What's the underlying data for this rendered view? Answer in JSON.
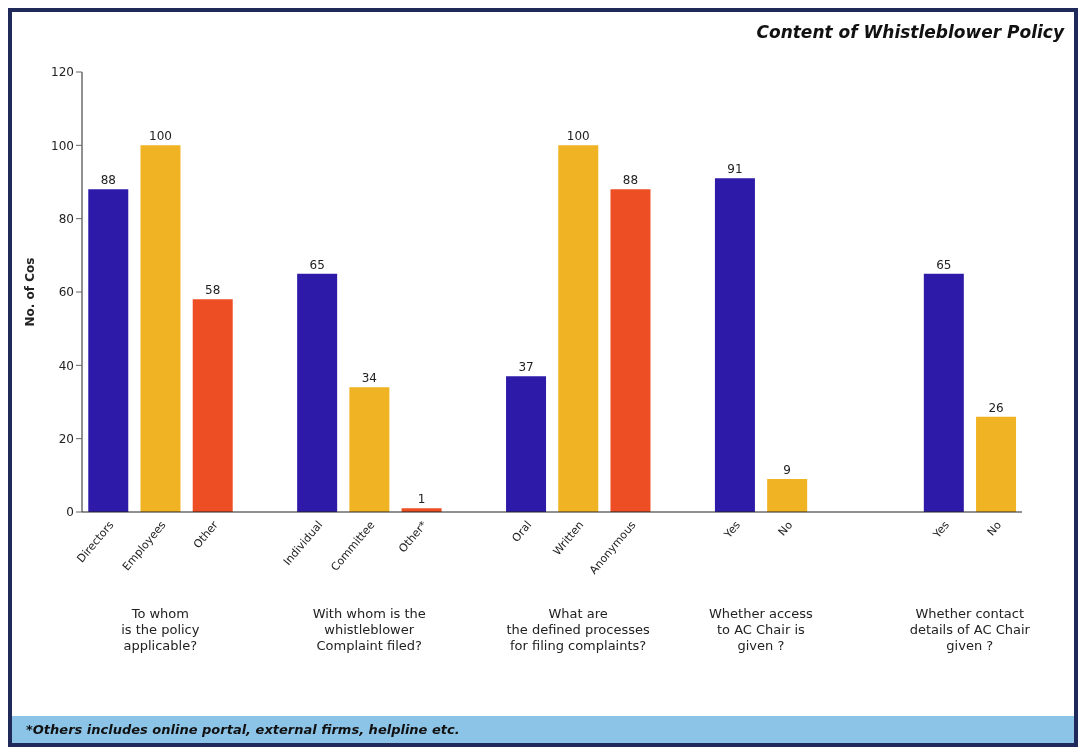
{
  "chart_data": {
    "type": "bar",
    "title": "Content of Whistleblower Policy",
    "ylabel": "No. of Cos",
    "categories": [
      "Directors",
      "Employees",
      "Other",
      null,
      "Individual",
      "Committee",
      "Other*",
      null,
      "Oral",
      "Written",
      "Anonymous",
      null,
      "Yes",
      "No",
      null,
      null,
      "Yes",
      "No"
    ],
    "values": [
      88,
      100,
      58,
      null,
      65,
      34,
      1,
      null,
      37,
      100,
      88,
      null,
      91,
      9,
      null,
      null,
      65,
      26
    ],
    "colors": [
      "#2e1aa8",
      "#f0b323",
      "#ee4e23",
      null,
      "#2e1aa8",
      "#f0b323",
      "#ee4e23",
      null,
      "#2e1aa8",
      "#f0b323",
      "#ee4e23",
      null,
      "#2e1aa8",
      "#f0b323",
      null,
      null,
      "#2e1aa8",
      "#f0b323"
    ],
    "ylim": [
      0,
      120
    ],
    "yticks": [
      0,
      20,
      40,
      60,
      80,
      100,
      120
    ],
    "grid": false,
    "data_labels": true,
    "annotations": [
      "To whom\nis the policy\napplicable?",
      "With whom is the\nwhistleblower\nComplaint filed?",
      "What are\nthe defined processes\nfor filing  complaints?",
      "Whether access\nto AC Chair is\ngiven ?",
      "Whether contact\ndetails of AC Chair\ngiven ?",
      "*Others includes online portal, external firms, helpline etc."
    ]
  }
}
